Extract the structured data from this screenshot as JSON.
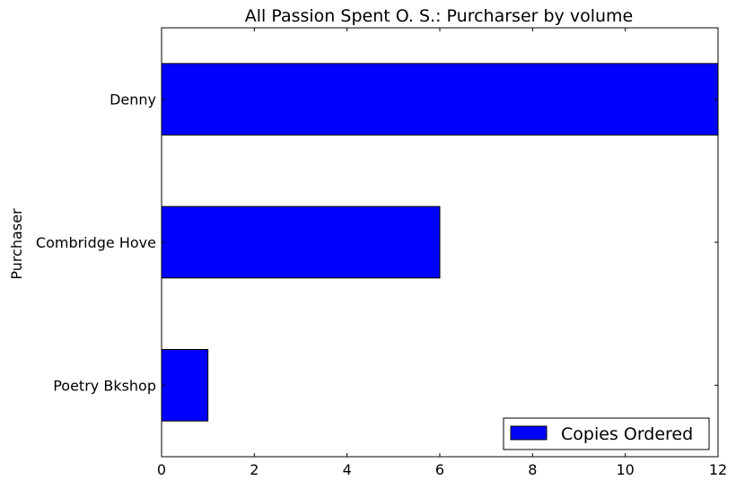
{
  "chart_data": {
    "type": "bar",
    "orientation": "horizontal",
    "title": "All Passion Spent O. S.: Purcharser by volume",
    "xlabel": "",
    "ylabel": "Purchaser",
    "categories": [
      "Poetry Bkshop",
      "Combridge Hove",
      "Denny"
    ],
    "series": [
      {
        "name": "Copies Ordered",
        "values": [
          1,
          6,
          12
        ],
        "color": "#0000ff"
      }
    ],
    "xlim": [
      0,
      12
    ],
    "xticks": [
      0,
      2,
      4,
      6,
      8,
      10,
      12
    ],
    "grid": false,
    "legend_position": "lower-right"
  }
}
